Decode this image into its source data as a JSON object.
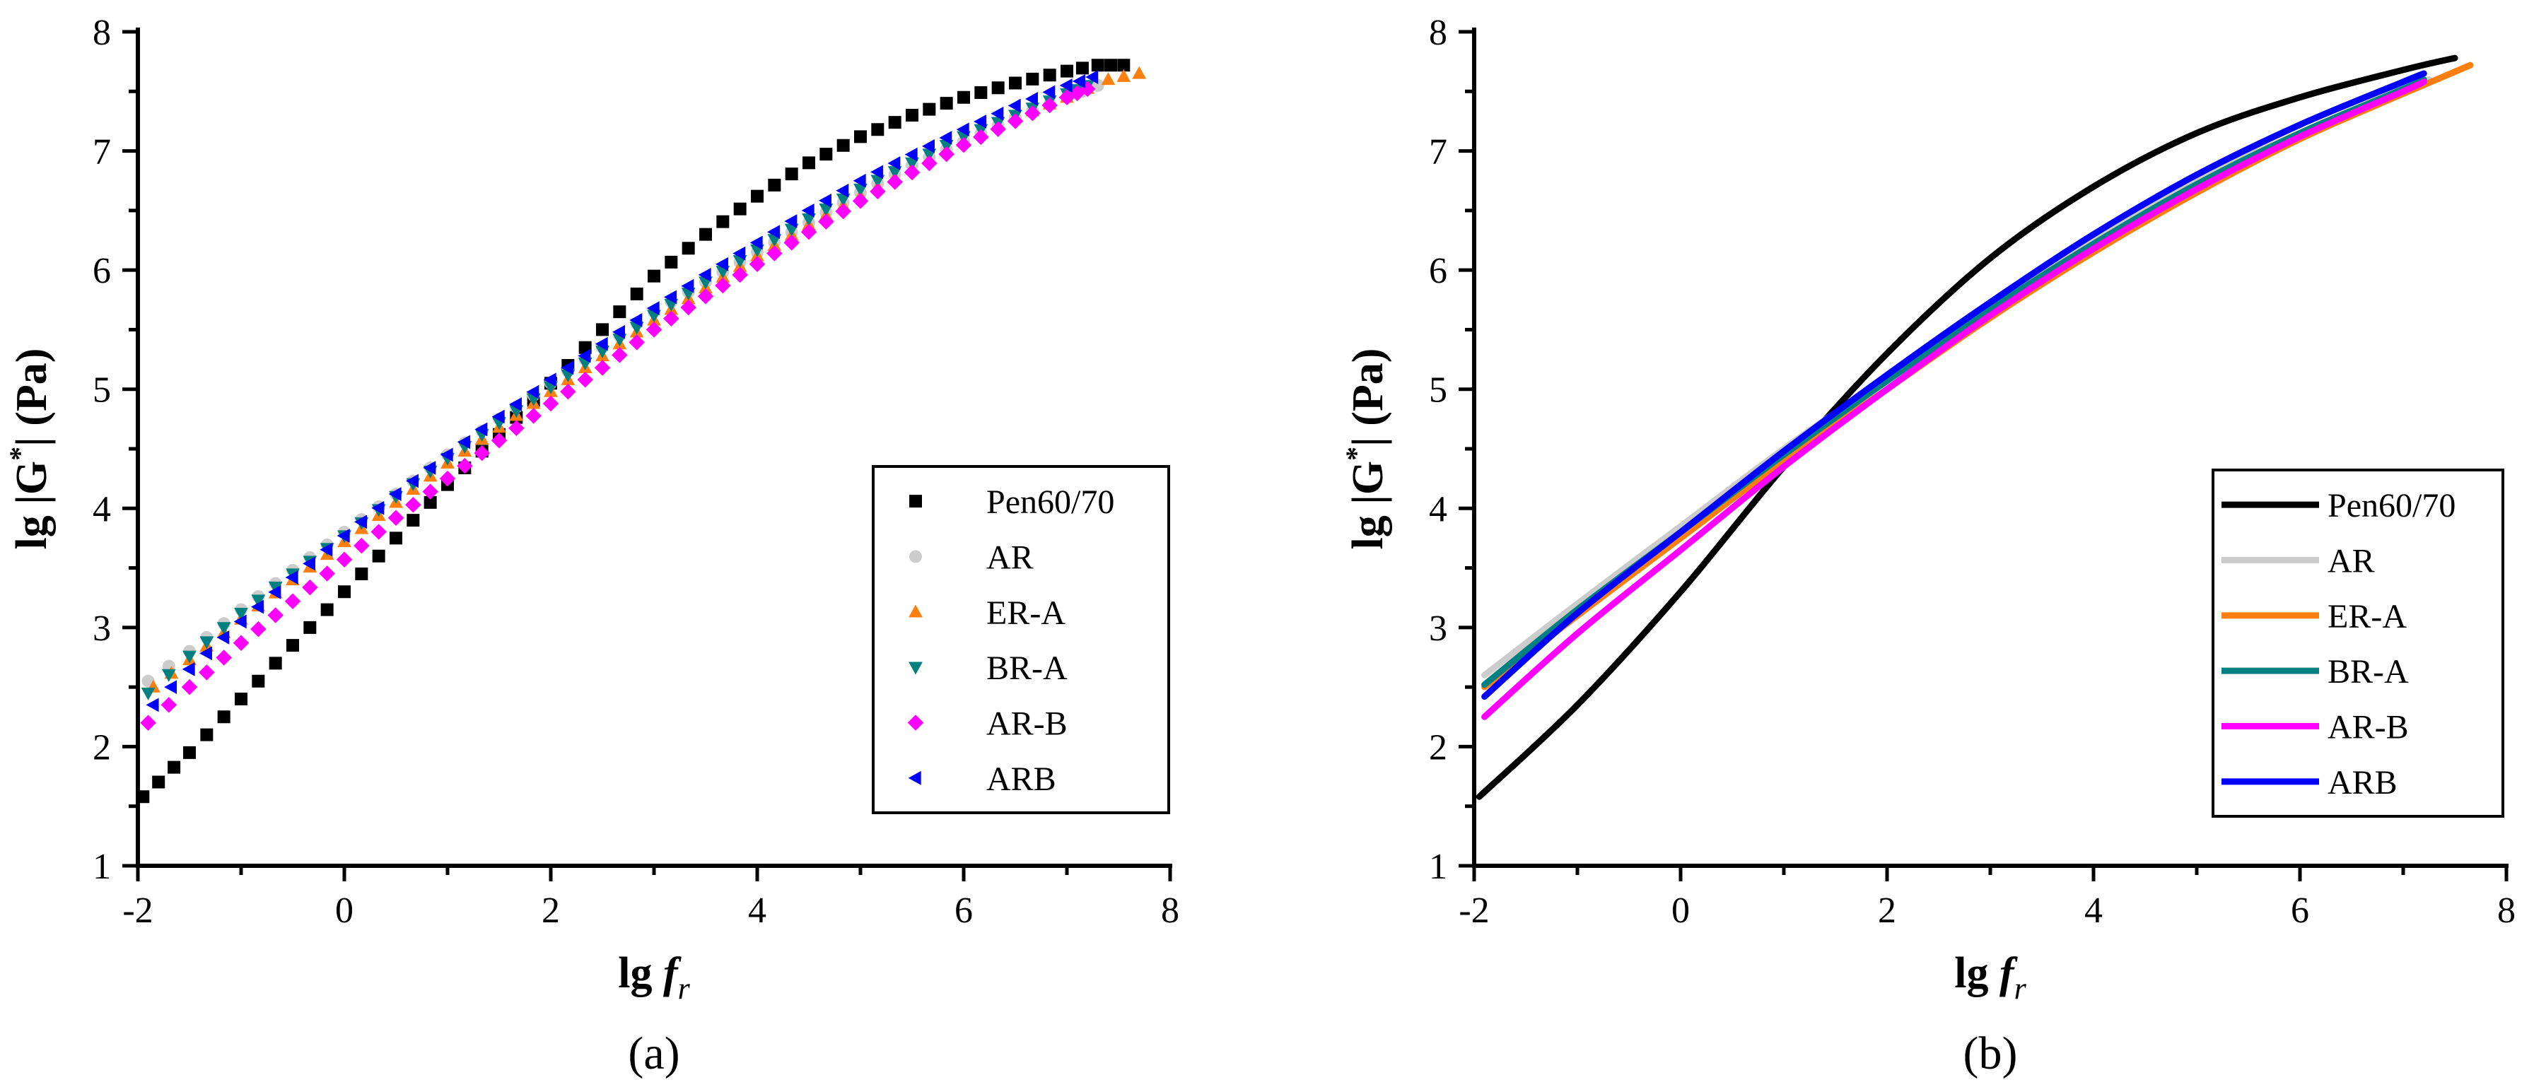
{
  "captions": [
    "(a)",
    "(b)"
  ],
  "series_styles": [
    {
      "name": "Pen60/70",
      "color": "#000000",
      "marker": "square"
    },
    {
      "name": "AR",
      "color": "#cccccc",
      "marker": "circle"
    },
    {
      "name": "ER-A",
      "color": "#ff7f0e",
      "marker": "triangle-up"
    },
    {
      "name": "BR-A",
      "color": "#008080",
      "marker": "triangle-down"
    },
    {
      "name": "AR-B",
      "color": "#ff00ff",
      "marker": "diamond"
    },
    {
      "name": "ARB",
      "color": "#0000ff",
      "marker": "triangle-left"
    }
  ],
  "chart_data": [
    {
      "id": "a",
      "type": "scatter",
      "caption": "(a)",
      "xlabel_main": "lg ",
      "xlabel_italic": "f",
      "xlabel_sub": "r",
      "ylabel_pre": "lg |G",
      "ylabel_sup": "*",
      "ylabel_post": "| (Pa)",
      "xlim": [
        -2,
        8
      ],
      "ylim": [
        1,
        8
      ],
      "xticks": [
        "-2",
        "0",
        "2",
        "4",
        "6",
        "8"
      ],
      "yticks": [
        "1",
        "2",
        "3",
        "4",
        "5",
        "6",
        "7",
        "8"
      ],
      "legend_position": "center-right",
      "series": [
        {
          "name": "Pen60/70",
          "points": [
            [
              -1.95,
              1.58
            ],
            [
              -1.5,
              1.95
            ],
            [
              -1.0,
              2.4
            ],
            [
              -0.5,
              2.85
            ],
            [
              0.0,
              3.3
            ],
            [
              0.5,
              3.75
            ],
            [
              1.0,
              4.2
            ],
            [
              1.5,
              4.62
            ],
            [
              2.0,
              5.05
            ],
            [
              2.5,
              5.5
            ],
            [
              3.0,
              5.95
            ],
            [
              3.5,
              6.3
            ],
            [
              4.0,
              6.62
            ],
            [
              4.5,
              6.9
            ],
            [
              5.0,
              7.12
            ],
            [
              5.5,
              7.3
            ],
            [
              6.0,
              7.45
            ],
            [
              6.5,
              7.57
            ],
            [
              7.0,
              7.67
            ],
            [
              7.3,
              7.72
            ],
            [
              7.55,
              7.72
            ]
          ]
        },
        {
          "name": "AR",
          "points": [
            [
              -1.9,
              2.55
            ],
            [
              -1.5,
              2.8
            ],
            [
              -1.0,
              3.15
            ],
            [
              -0.5,
              3.48
            ],
            [
              0.0,
              3.8
            ],
            [
              0.5,
              4.12
            ],
            [
              1.0,
              4.45
            ],
            [
              1.5,
              4.75
            ],
            [
              2.0,
              5.05
            ],
            [
              2.5,
              5.35
            ],
            [
              3.0,
              5.65
            ],
            [
              3.5,
              5.9
            ],
            [
              4.0,
              6.15
            ],
            [
              4.5,
              6.4
            ],
            [
              5.0,
              6.65
            ],
            [
              5.5,
              6.88
            ],
            [
              6.0,
              7.08
            ],
            [
              6.5,
              7.28
            ],
            [
              7.0,
              7.45
            ],
            [
              7.3,
              7.55
            ]
          ]
        },
        {
          "name": "ER-A",
          "points": [
            [
              -1.85,
              2.5
            ],
            [
              -1.5,
              2.73
            ],
            [
              -1.0,
              3.07
            ],
            [
              -0.5,
              3.4
            ],
            [
              0.0,
              3.72
            ],
            [
              0.5,
              4.05
            ],
            [
              1.0,
              4.38
            ],
            [
              1.5,
              4.68
            ],
            [
              2.0,
              4.98
            ],
            [
              2.5,
              5.28
            ],
            [
              3.0,
              5.58
            ],
            [
              3.5,
              5.85
            ],
            [
              4.0,
              6.12
            ],
            [
              4.5,
              6.38
            ],
            [
              5.0,
              6.62
            ],
            [
              5.5,
              6.85
            ],
            [
              6.0,
              7.08
            ],
            [
              6.5,
              7.28
            ],
            [
              7.0,
              7.45
            ],
            [
              7.4,
              7.6
            ],
            [
              7.7,
              7.65
            ]
          ]
        },
        {
          "name": "BR-A",
          "points": [
            [
              -1.9,
              2.45
            ],
            [
              -1.5,
              2.76
            ],
            [
              -1.0,
              3.12
            ],
            [
              -0.5,
              3.45
            ],
            [
              0.0,
              3.77
            ],
            [
              0.5,
              4.1
            ],
            [
              1.0,
              4.42
            ],
            [
              1.5,
              4.72
            ],
            [
              2.0,
              5.02
            ],
            [
              2.5,
              5.32
            ],
            [
              3.0,
              5.62
            ],
            [
              3.5,
              5.9
            ],
            [
              4.0,
              6.17
            ],
            [
              4.5,
              6.43
            ],
            [
              5.0,
              6.68
            ],
            [
              5.5,
              6.9
            ],
            [
              6.0,
              7.12
            ],
            [
              6.5,
              7.3
            ],
            [
              7.0,
              7.48
            ],
            [
              7.2,
              7.55
            ]
          ]
        },
        {
          "name": "AR-B",
          "points": [
            [
              -1.9,
              2.2
            ],
            [
              -1.5,
              2.5
            ],
            [
              -1.0,
              2.87
            ],
            [
              -0.5,
              3.22
            ],
            [
              0.0,
              3.57
            ],
            [
              0.5,
              3.92
            ],
            [
              1.0,
              4.25
            ],
            [
              1.5,
              4.57
            ],
            [
              2.0,
              4.88
            ],
            [
              2.5,
              5.18
            ],
            [
              3.0,
              5.5
            ],
            [
              3.5,
              5.78
            ],
            [
              4.0,
              6.05
            ],
            [
              4.5,
              6.32
            ],
            [
              5.0,
              6.58
            ],
            [
              5.5,
              6.82
            ],
            [
              6.0,
              7.05
            ],
            [
              6.5,
              7.25
            ],
            [
              7.0,
              7.45
            ],
            [
              7.2,
              7.52
            ]
          ]
        },
        {
          "name": "ARB",
          "points": [
            [
              -1.85,
              2.35
            ],
            [
              -1.5,
              2.65
            ],
            [
              -1.0,
              3.05
            ],
            [
              -0.5,
              3.42
            ],
            [
              0.0,
              3.77
            ],
            [
              0.5,
              4.12
            ],
            [
              1.0,
              4.45
            ],
            [
              1.5,
              4.77
            ],
            [
              2.0,
              5.08
            ],
            [
              2.5,
              5.38
            ],
            [
              3.0,
              5.68
            ],
            [
              3.5,
              5.96
            ],
            [
              4.0,
              6.23
            ],
            [
              4.5,
              6.5
            ],
            [
              5.0,
              6.75
            ],
            [
              5.5,
              6.97
            ],
            [
              6.0,
              7.18
            ],
            [
              6.5,
              7.38
            ],
            [
              7.0,
              7.55
            ],
            [
              7.25,
              7.62
            ]
          ]
        }
      ]
    },
    {
      "id": "b",
      "type": "line",
      "caption": "(b)",
      "xlabel_main": "lg ",
      "xlabel_italic": "f",
      "xlabel_sub": "r",
      "ylabel_pre": "lg |G",
      "ylabel_sup": "*",
      "ylabel_post": "| (Pa)",
      "xlim": [
        -2,
        8
      ],
      "ylim": [
        1,
        8
      ],
      "xticks": [
        "-2",
        "0",
        "2",
        "4",
        "6",
        "8"
      ],
      "yticks": [
        "1",
        "2",
        "3",
        "4",
        "5",
        "6",
        "7",
        "8"
      ],
      "legend_position": "center-right",
      "series": [
        {
          "name": "Pen60/70",
          "points": [
            [
              -1.95,
              1.58
            ],
            [
              -1.0,
              2.35
            ],
            [
              0.0,
              3.3
            ],
            [
              1.0,
              4.35
            ],
            [
              2.0,
              5.3
            ],
            [
              3.0,
              6.1
            ],
            [
              4.0,
              6.7
            ],
            [
              5.0,
              7.15
            ],
            [
              6.0,
              7.45
            ],
            [
              7.0,
              7.68
            ],
            [
              7.5,
              7.78
            ]
          ]
        },
        {
          "name": "AR",
          "points": [
            [
              -1.9,
              2.6
            ],
            [
              -1.0,
              3.2
            ],
            [
              0.0,
              3.85
            ],
            [
              1.0,
              4.5
            ],
            [
              2.0,
              5.1
            ],
            [
              3.0,
              5.7
            ],
            [
              4.0,
              6.25
            ],
            [
              5.0,
              6.75
            ],
            [
              6.0,
              7.15
            ],
            [
              7.0,
              7.5
            ],
            [
              7.25,
              7.6
            ]
          ]
        },
        {
          "name": "ER-A",
          "points": [
            [
              -1.9,
              2.5
            ],
            [
              -1.0,
              3.1
            ],
            [
              0.0,
              3.75
            ],
            [
              1.0,
              4.4
            ],
            [
              2.0,
              5.0
            ],
            [
              3.0,
              5.6
            ],
            [
              4.0,
              6.15
            ],
            [
              5.0,
              6.65
            ],
            [
              6.0,
              7.1
            ],
            [
              7.0,
              7.48
            ],
            [
              7.65,
              7.72
            ]
          ]
        },
        {
          "name": "BR-A",
          "points": [
            [
              -1.9,
              2.52
            ],
            [
              -1.0,
              3.15
            ],
            [
              0.0,
              3.8
            ],
            [
              1.0,
              4.45
            ],
            [
              2.0,
              5.07
            ],
            [
              3.0,
              5.67
            ],
            [
              4.0,
              6.22
            ],
            [
              5.0,
              6.72
            ],
            [
              6.0,
              7.15
            ],
            [
              7.0,
              7.52
            ],
            [
              7.2,
              7.6
            ]
          ]
        },
        {
          "name": "AR-B",
          "points": [
            [
              -1.9,
              2.25
            ],
            [
              -1.0,
              2.95
            ],
            [
              0.0,
              3.65
            ],
            [
              1.0,
              4.35
            ],
            [
              2.0,
              5.0
            ],
            [
              3.0,
              5.62
            ],
            [
              4.0,
              6.18
            ],
            [
              5.0,
              6.68
            ],
            [
              6.0,
              7.12
            ],
            [
              7.0,
              7.5
            ],
            [
              7.2,
              7.58
            ]
          ]
        },
        {
          "name": "ARB",
          "points": [
            [
              -1.9,
              2.42
            ],
            [
              -1.0,
              3.12
            ],
            [
              0.0,
              3.8
            ],
            [
              1.0,
              4.48
            ],
            [
              2.0,
              5.12
            ],
            [
              3.0,
              5.73
            ],
            [
              4.0,
              6.3
            ],
            [
              5.0,
              6.8
            ],
            [
              6.0,
              7.22
            ],
            [
              7.0,
              7.58
            ],
            [
              7.2,
              7.65
            ]
          ]
        }
      ]
    }
  ]
}
